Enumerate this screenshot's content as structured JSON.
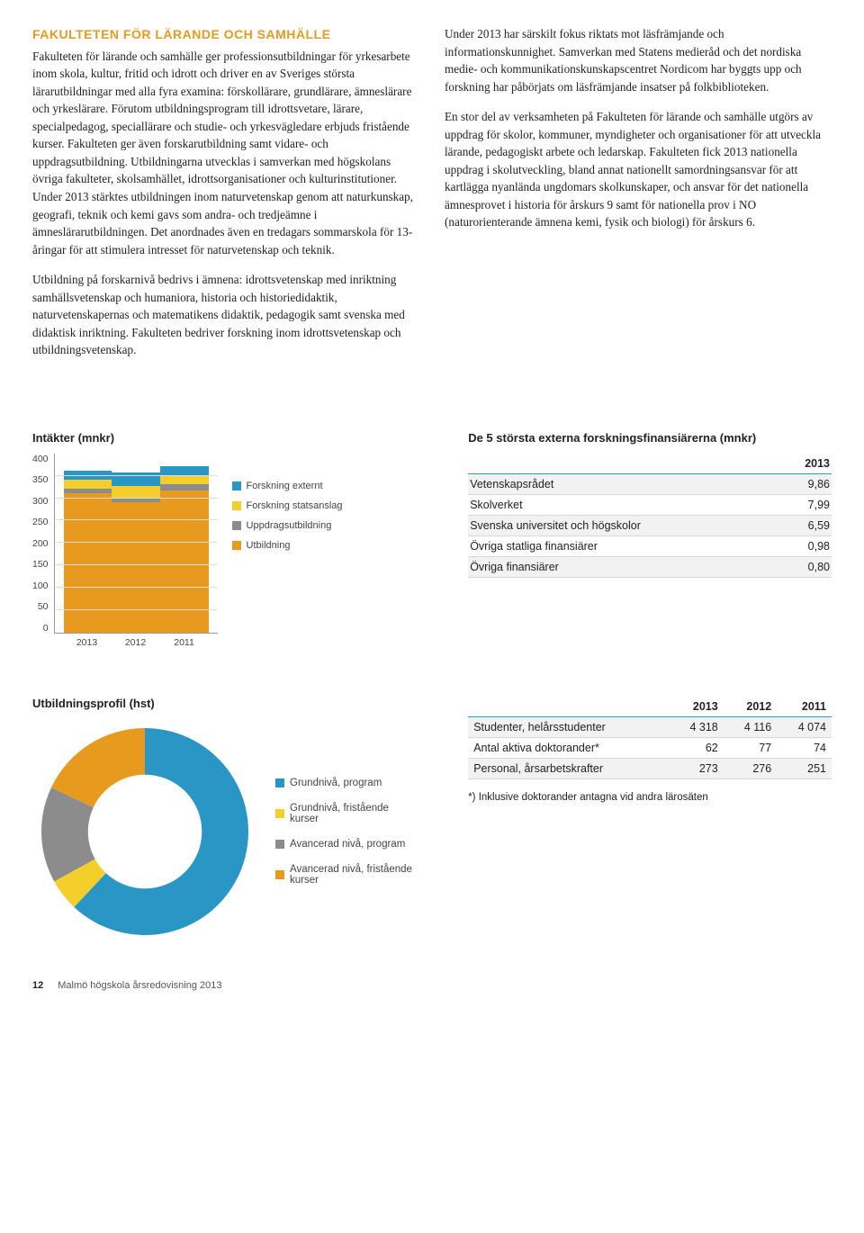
{
  "section_title_color": "#e79a1e",
  "heading": "FAKULTETEN FÖR LÄRANDE OCH SAMHÄLLE",
  "col1_text": "Fakulteten för lärande och samhälle ger professionsutbildningar för yrkesarbete inom skola, kultur, fritid och idrott och driver en av Sveriges största lärarutbildningar med alla fyra examina: förskollärare, grundlärare, ämneslärare och yrkeslärare. Förutom utbildningsprogram till idrottsvetare, lärare, specialpedagog, speciallärare och studie- och yrkesvägledare erbjuds fristående kurser. Fakulteten ger även forskarutbildning samt vidare- och uppdragsutbildning. Utbildningarna utvecklas i samverkan med högskolans övriga fakulteter, skolsamhället, idrottsorganisationer och kulturinstitutioner. Under 2013 stärktes utbildningen inom naturvetenskap genom att naturkunskap, geografi, teknik och kemi gavs som andra- och tredjeämne i ämneslärarutbildningen. Det anordnades även en tredagars sommarskola för 13-åringar för att stimulera intresset för naturvetenskap och teknik.",
  "col1_para2": "Utbildning på forskarnivå bedrivs i ämnena: idrottsvetenskap med inriktning samhällsvetenskap och humaniora, historia och historiedidaktik, naturvetenskapernas och matematikens didaktik, pedagogik samt svenska med didaktisk inriktning. Fakulteten bedriver forskning inom idrottsvetenskap och utbildningsvetenskap.",
  "col2_text": "Under 2013 har särskilt fokus riktats mot läsfrämjande och informationskunnighet. Samverkan med Statens medieråd och det nordiska medie- och kommunikationskunskapscentret Nordicom har byggts upp och forskning har påbörjats om läsfrämjande insatser på folkbiblioteken.",
  "col2_para2": "En stor del av verksamheten på Fakulteten för lärande och samhälle utgörs av uppdrag för skolor, kommuner, myndigheter och organisationer för att utveckla lärande, pedagogiskt arbete och ledarskap. Fakulteten fick 2013 nationella uppdrag i skolutveckling, bland annat nationellt samordningsansvar för att kartlägga nyanlända ungdomars skolkunskaper, och ansvar för det nationella ämnesprovet i historia för årskurs 9 samt för nationella prov i NO (naturorienterande ämnena kemi, fysik och biologi) för årskurs 6.",
  "bar_chart": {
    "title": "Intäkter (mnkr)",
    "ymax": 400,
    "ytick_step": 50,
    "categories": [
      "2013",
      "2012",
      "2011"
    ],
    "series": [
      {
        "label": "Forskning externt",
        "color": "#2a96c6",
        "values": [
          20,
          30,
          20
        ]
      },
      {
        "label": "Forskning statsanslag",
        "color": "#f4cf2b",
        "values": [
          20,
          25,
          20
        ]
      },
      {
        "label": "Uppdragsutbildning",
        "color": "#8c8c8c",
        "values": [
          10,
          10,
          15
        ]
      },
      {
        "label": "Utbildning",
        "color": "#e79a1e",
        "values": [
          310,
          290,
          315
        ]
      }
    ],
    "axis_color": "#999999",
    "grid_color": "#dddddd",
    "label_fontsize": 10.5
  },
  "fin_table": {
    "title": "De 5 största externa forskningsfinansiärerna (mnkr)",
    "year": "2013",
    "rows": [
      {
        "name": "Vetenskapsrådet",
        "value": "9,86"
      },
      {
        "name": "Skolverket",
        "value": "7,99"
      },
      {
        "name": "Svenska universitet och högskolor",
        "value": "6,59"
      },
      {
        "name": "Övriga statliga finansiärer",
        "value": "0,98"
      },
      {
        "name": "Övriga finansiärer",
        "value": "0,80"
      }
    ],
    "header_rule_color": "#26a0c9",
    "row_alt_bg": "#f2f2f2"
  },
  "donut": {
    "title": "Utbildningsprofil (hst)",
    "slices": [
      {
        "label": "Grundnivå, program",
        "color": "#2a96c6",
        "value": 62
      },
      {
        "label": "Grundnivå, fristående kurser",
        "color": "#f4cf2b",
        "value": 5
      },
      {
        "label": "Avancerad nivå, program",
        "color": "#8c8c8c",
        "value": 15
      },
      {
        "label": "Avancerad nivå, fristående kurser",
        "color": "#e79a1e",
        "value": 18
      }
    ],
    "inner_radius_ratio": 0.55
  },
  "stats_table": {
    "years": [
      "2013",
      "2012",
      "2011"
    ],
    "rows": [
      {
        "name": "Studenter, helårsstudenter",
        "values": [
          "4 318",
          "4 116",
          "4 074"
        ]
      },
      {
        "name": "Antal aktiva doktorander*",
        "values": [
          "62",
          "77",
          "74"
        ]
      },
      {
        "name": "Personal, årsarbetskrafter",
        "values": [
          "273",
          "276",
          "251"
        ]
      }
    ],
    "note": "*) Inklusive doktorander antagna vid andra lärosäten"
  },
  "footer": {
    "page_num": "12",
    "text": "Malmö högskola årsredovisning 2013"
  }
}
